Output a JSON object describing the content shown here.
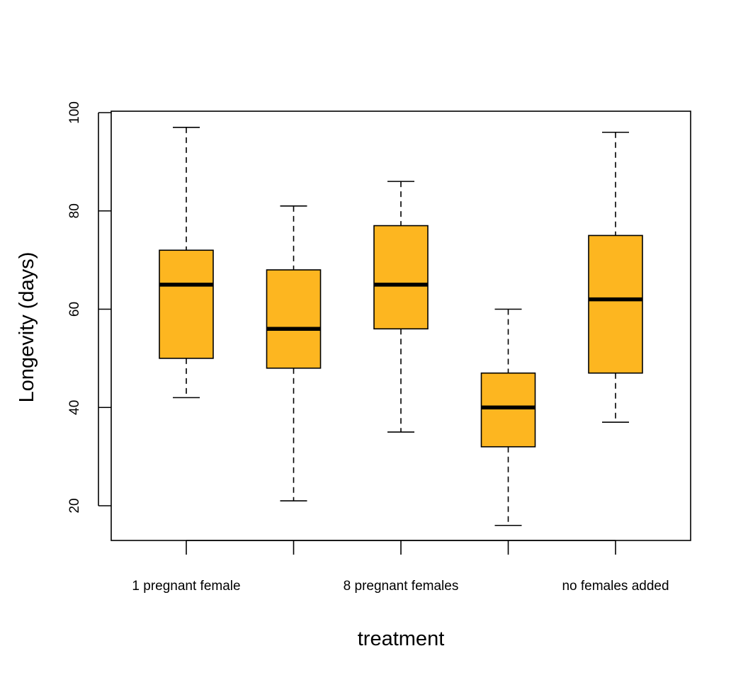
{
  "chart_data": {
    "type": "boxplot",
    "xlabel": "treatment",
    "ylabel": "Longevity (days)",
    "ylim": [
      13,
      100
    ],
    "yticks": [
      20,
      40,
      60,
      80,
      100
    ],
    "grid": false,
    "legend": "none",
    "box_color": "#FDB620",
    "categories": [
      {
        "label": "1 pregnant female",
        "label_visible": true
      },
      {
        "label": "",
        "label_visible": false
      },
      {
        "label": "8 pregnant females",
        "label_visible": true
      },
      {
        "label": "",
        "label_visible": false
      },
      {
        "label": "no females added",
        "label_visible": true
      }
    ],
    "boxes": [
      {
        "min": 42,
        "q1": 50,
        "median": 65,
        "q3": 72,
        "max": 97
      },
      {
        "min": 21,
        "q1": 48,
        "median": 56,
        "q3": 68,
        "max": 81
      },
      {
        "min": 35,
        "q1": 56,
        "median": 65,
        "q3": 77,
        "max": 86
      },
      {
        "min": 16,
        "q1": 32,
        "median": 40,
        "q3": 47,
        "max": 60
      },
      {
        "min": 37,
        "q1": 47,
        "median": 62,
        "q3": 75,
        "max": 96
      }
    ]
  }
}
